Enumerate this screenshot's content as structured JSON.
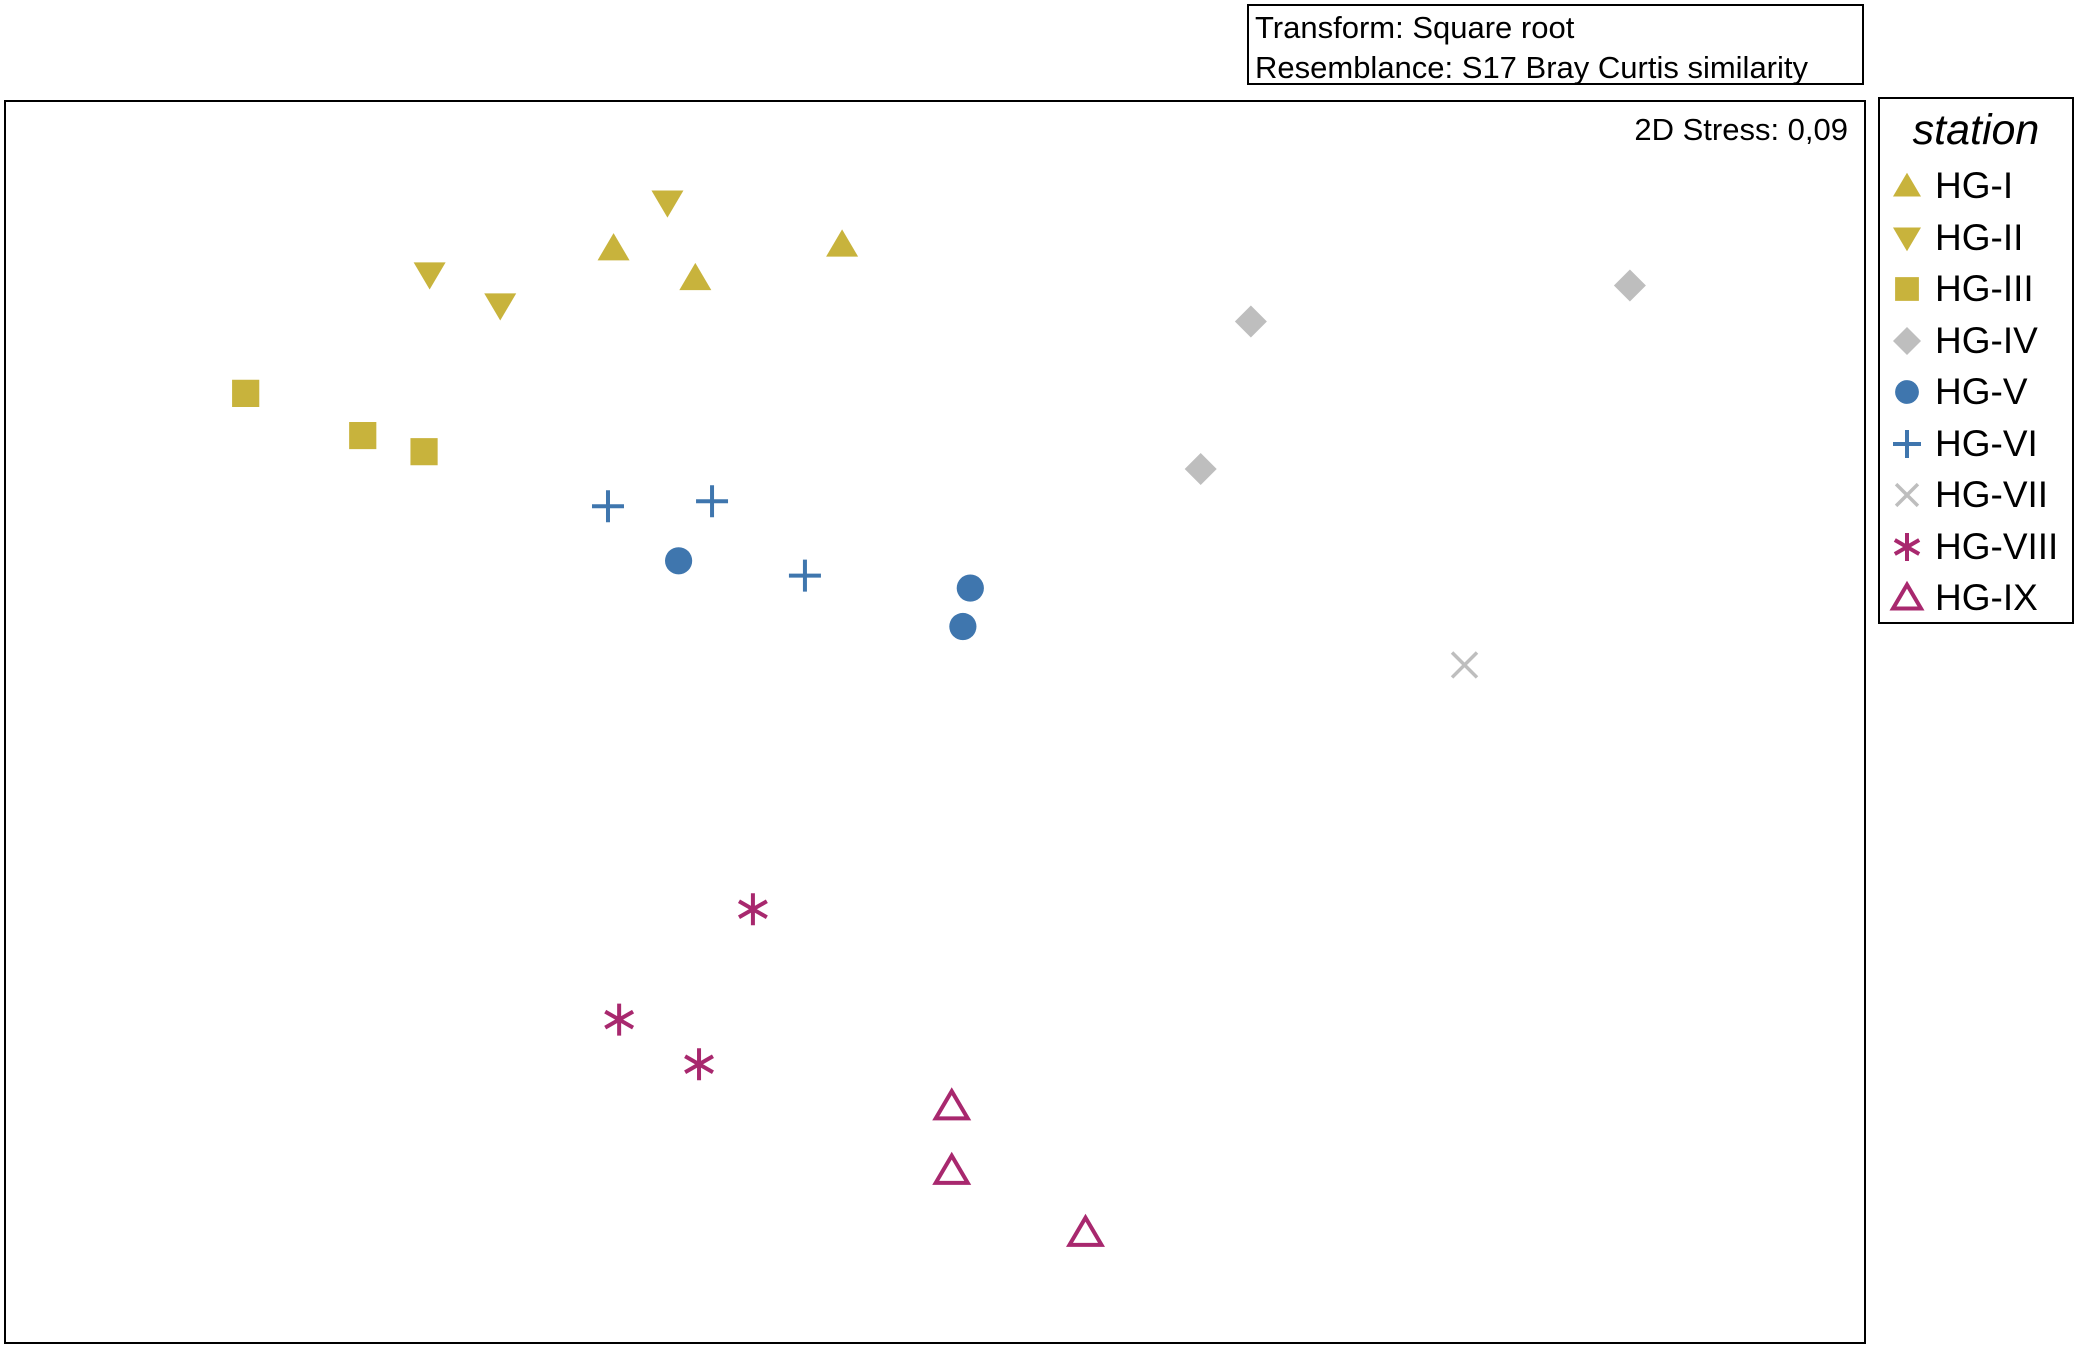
{
  "info": {
    "transform": "Transform: Square root",
    "resemblance": "Resemblance: S17 Bray Curtis similarity"
  },
  "stress": "2D Stress: 0,09",
  "legend": {
    "title": "station",
    "items": [
      {
        "label": "HG-I",
        "marker": "triangle-up-filled",
        "color": "#C8B33C"
      },
      {
        "label": "HG-II",
        "marker": "triangle-down-filled",
        "color": "#C8B33C"
      },
      {
        "label": "HG-III",
        "marker": "square-filled",
        "color": "#C8B33C"
      },
      {
        "label": "HG-IV",
        "marker": "diamond-filled",
        "color": "#BEBEBE"
      },
      {
        "label": "HG-V",
        "marker": "circle-filled",
        "color": "#3F76AE"
      },
      {
        "label": "HG-VI",
        "marker": "plus",
        "color": "#3F76AE"
      },
      {
        "label": "HG-VII",
        "marker": "cross",
        "color": "#BEBEBE"
      },
      {
        "label": "HG-VIII",
        "marker": "asterisk",
        "color": "#A8286E"
      },
      {
        "label": "HG-IX",
        "marker": "triangle-up-open",
        "color": "#A8286E"
      }
    ]
  },
  "chart_data": {
    "type": "scatter",
    "title": "",
    "xlabel": "",
    "ylabel": "",
    "xlim": [
      0,
      100
    ],
    "ylim": [
      0,
      100
    ],
    "axes_visible": false,
    "grid": false,
    "legend_position": "right",
    "series": [
      {
        "name": "HG-I",
        "points": [
          [
            32.7,
            88.2
          ],
          [
            37.1,
            85.8
          ],
          [
            45.0,
            88.5
          ]
        ]
      },
      {
        "name": "HG-II",
        "points": [
          [
            35.6,
            91.9
          ],
          [
            22.8,
            86.1
          ],
          [
            26.6,
            83.6
          ]
        ]
      },
      {
        "name": "HG-III",
        "points": [
          [
            12.9,
            76.5
          ],
          [
            19.2,
            73.1
          ],
          [
            22.5,
            71.8
          ]
        ]
      },
      {
        "name": "HG-IV",
        "points": [
          [
            87.4,
            85.2
          ],
          [
            67.0,
            82.3
          ],
          [
            64.3,
            70.4
          ]
        ]
      },
      {
        "name": "HG-V",
        "points": [
          [
            36.2,
            63.0
          ],
          [
            51.9,
            60.8
          ],
          [
            51.5,
            57.7
          ]
        ]
      },
      {
        "name": "HG-VI",
        "points": [
          [
            32.4,
            67.4
          ],
          [
            38.0,
            67.8
          ],
          [
            43.0,
            61.8
          ]
        ]
      },
      {
        "name": "HG-VII",
        "points": [
          [
            78.5,
            54.6
          ]
        ]
      },
      {
        "name": "HG-VIII",
        "points": [
          [
            40.2,
            34.9
          ],
          [
            33.0,
            26.0
          ],
          [
            37.3,
            22.4
          ]
        ]
      },
      {
        "name": "HG-IX",
        "points": [
          [
            50.9,
            19.0
          ],
          [
            50.9,
            13.8
          ],
          [
            58.1,
            8.8
          ]
        ]
      }
    ]
  }
}
